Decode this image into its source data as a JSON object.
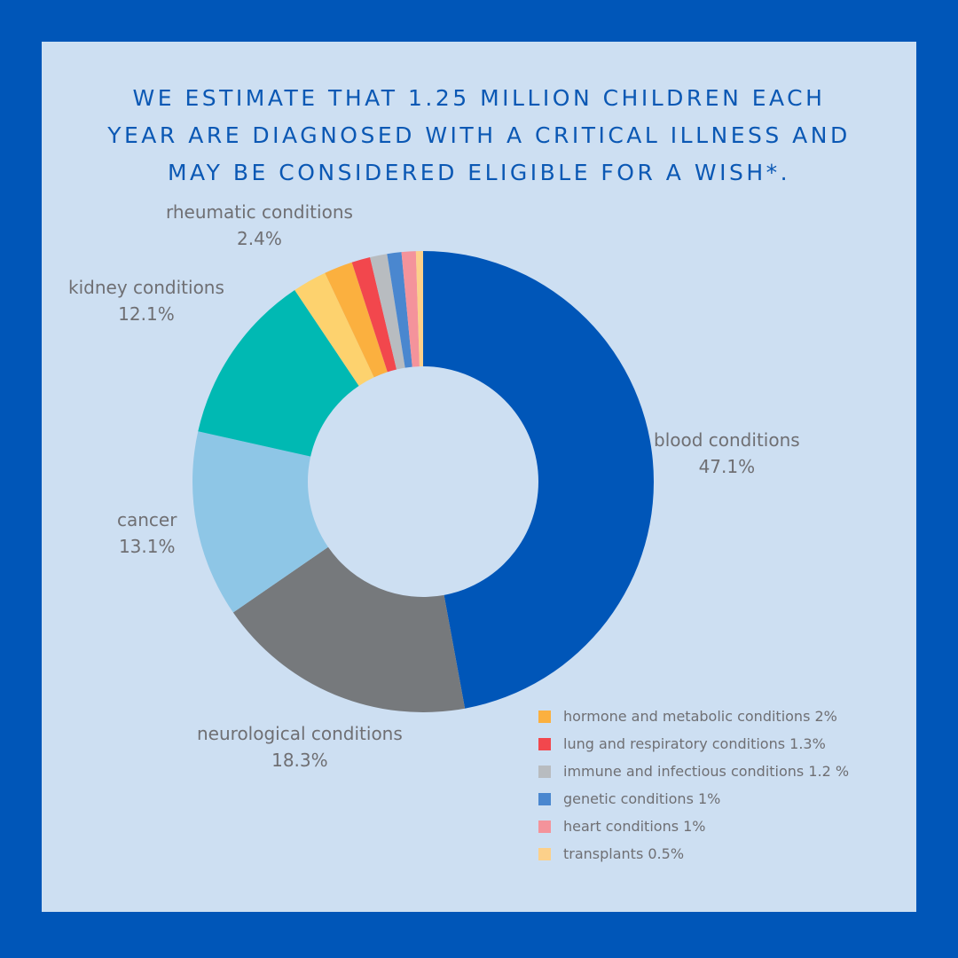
{
  "title_lines": [
    "WE ESTIMATE THAT 1.25 MILLION CHILDREN EACH",
    "YEAR ARE DIAGNOSED WITH A CRITICAL ILLNESS AND",
    "MAY BE CONSIDERED ELIGIBLE FOR A WISH*."
  ],
  "colors": {
    "background_frame": "#0056b8",
    "panel": "#cddff2",
    "title": "#0b58b4",
    "label_text": "#6f6f73"
  },
  "chart_data": {
    "type": "pie",
    "variant": "donut",
    "title": "WE ESTIMATE THAT 1.25 MILLION CHILDREN EACH YEAR ARE DIAGNOSED WITH A CRITICAL ILLNESS AND MAY BE CONSIDERED ELIGIBLE FOR A WISH*.",
    "legend_placement": "bottom-right",
    "slices": [
      {
        "label": "blood conditions",
        "value": 47.1,
        "pct_text": "47.1%",
        "color": "#0056b8",
        "labeled": true
      },
      {
        "label": "neurological conditions",
        "value": 18.3,
        "pct_text": "18.3%",
        "color": "#76797c",
        "labeled": true
      },
      {
        "label": "cancer",
        "value": 13.1,
        "pct_text": "13.1%",
        "color": "#8ec6e6",
        "labeled": true
      },
      {
        "label": "kidney conditions",
        "value": 12.1,
        "pct_text": "12.1%",
        "color": "#00b9b3",
        "labeled": true
      },
      {
        "label": "rheumatic conditions",
        "value": 2.4,
        "pct_text": "2.4%",
        "color": "#fdd26e",
        "labeled": true
      },
      {
        "label": "hormone and metabolic conditions",
        "value": 2,
        "pct_text": "2%",
        "color": "#fbb03f",
        "labeled": false
      },
      {
        "label": "lung and respiratory conditions",
        "value": 1.3,
        "pct_text": "1.3%",
        "color": "#f2474d",
        "labeled": false
      },
      {
        "label": "immune and infectious conditions",
        "value": 1.2,
        "pct_text": "1.2 %",
        "color": "#b8bcc0",
        "labeled": false
      },
      {
        "label": "genetic conditions",
        "value": 1,
        "pct_text": "1%",
        "color": "#4a87cf",
        "labeled": false
      },
      {
        "label": "heart conditions",
        "value": 1,
        "pct_text": "1%",
        "color": "#f4939b",
        "labeled": false
      },
      {
        "label": "transplants",
        "value": 0.5,
        "pct_text": "0.5%",
        "color": "#fcd08a",
        "labeled": false
      }
    ],
    "legend": [
      {
        "text": "hormone and metabolic conditions 2%",
        "color": "#fbb03f"
      },
      {
        "text": "lung and respiratory conditions 1.3%",
        "color": "#f2474d"
      },
      {
        "text": "immune and infectious conditions 1.2 %",
        "color": "#b8bcc0"
      },
      {
        "text": "genetic conditions 1%",
        "color": "#4a87cf"
      },
      {
        "text": "heart conditions 1%",
        "color": "#f4939b"
      },
      {
        "text": "transplants 0.5%",
        "color": "#fcd08a"
      }
    ]
  }
}
